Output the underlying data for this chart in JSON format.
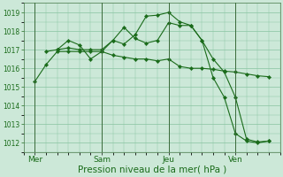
{
  "bg_color": "#cce8d8",
  "grid_color": "#88c4a0",
  "line_color": "#1a6b1a",
  "xlabel": "Pression niveau de la mer( hPa )",
  "xlabel_fontsize": 7.5,
  "ylim": [
    1011.5,
    1019.5
  ],
  "yticks": [
    1012,
    1013,
    1014,
    1015,
    1016,
    1017,
    1018,
    1019
  ],
  "xtick_labels": [
    "Mer",
    "Sam",
    "Jeu",
    "Ven"
  ],
  "xtick_positions": [
    0,
    3,
    6,
    9
  ],
  "vline_positions": [
    0,
    3,
    6,
    9
  ],
  "series": [
    {
      "x": [
        0,
        0.5,
        1,
        1.5,
        2,
        2.5,
        3,
        3.5,
        4,
        4.5,
        5,
        5.5,
        6,
        6.5,
        7,
        7.5,
        8,
        8.5,
        9,
        9.5,
        10,
        10.5
      ],
      "y": [
        1015.3,
        1016.2,
        1016.9,
        1016.9,
        1016.9,
        1016.9,
        1016.9,
        1016.7,
        1016.6,
        1016.5,
        1016.5,
        1016.4,
        1016.5,
        1016.1,
        1016.0,
        1016.0,
        1015.95,
        1015.85,
        1015.8,
        1015.7,
        1015.6,
        1015.55
      ]
    },
    {
      "x": [
        0.5,
        1,
        1.5,
        2,
        2.5,
        3,
        3.5,
        4,
        4.5,
        5,
        5.5,
        6,
        6.5,
        7,
        7.5,
        8,
        8.5,
        9,
        9.5,
        10,
        10.5
      ],
      "y": [
        1016.9,
        1017.0,
        1017.5,
        1017.25,
        1016.5,
        1016.9,
        1017.5,
        1018.2,
        1017.6,
        1017.35,
        1017.5,
        1018.45,
        1018.3,
        1018.3,
        1017.5,
        1015.5,
        1014.45,
        1012.5,
        1012.1,
        1012.0,
        1012.1
      ]
    },
    {
      "x": [
        1,
        1.5,
        2,
        2.5,
        3,
        3.5,
        4,
        4.5,
        5,
        5.5,
        6,
        6.5,
        7,
        7.5,
        8,
        8.5,
        9,
        9.5,
        10,
        10.5
      ],
      "y": [
        1017.0,
        1017.1,
        1017.0,
        1017.0,
        1017.0,
        1017.5,
        1017.3,
        1017.8,
        1018.8,
        1018.85,
        1019.0,
        1018.5,
        1018.3,
        1017.5,
        1016.5,
        1015.8,
        1014.45,
        1012.2,
        1012.05,
        1012.1
      ]
    }
  ]
}
